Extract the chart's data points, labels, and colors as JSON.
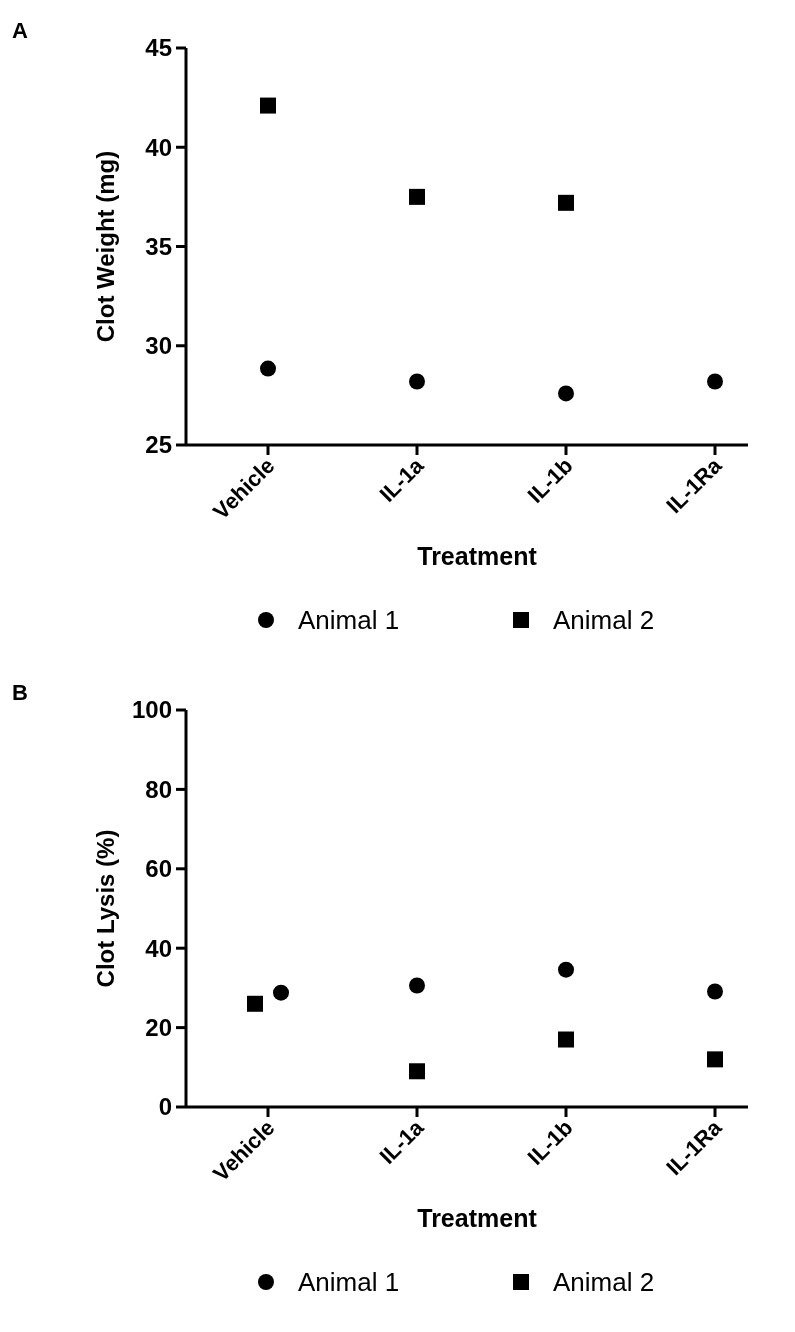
{
  "chart_data": [
    {
      "type": "scatter",
      "title": "A",
      "xlabel": "Treatment",
      "ylabel": "Clot Weight (mg)",
      "categories": [
        "Vehicle",
        "IL-1a",
        "IL-1b",
        "IL-1Ra"
      ],
      "ylim": [
        25,
        45
      ],
      "yticks": [
        25,
        30,
        35,
        40,
        45
      ],
      "legend": "bottom",
      "grid": false,
      "series": [
        {
          "name": "Animal 1",
          "color": "#000000",
          "marker": "circle",
          "values": [
            28.85,
            28.2,
            27.6,
            28.2
          ]
        },
        {
          "name": "Animal 2",
          "color": "#000000",
          "marker": "square",
          "values": [
            42.1,
            37.5,
            37.2,
            null
          ]
        }
      ]
    },
    {
      "type": "scatter",
      "title": "B",
      "xlabel": "Treatment",
      "ylabel": "Clot Lysis (%)",
      "categories": [
        "Vehicle",
        "IL-1a",
        "IL-1b",
        "IL-1Ra"
      ],
      "ylim": [
        0,
        100
      ],
      "yticks": [
        0,
        20,
        40,
        60,
        80,
        100
      ],
      "legend": "bottom",
      "grid": false,
      "series": [
        {
          "name": "Animal 1",
          "color": "#000000",
          "marker": "circle",
          "values": [
            28.8,
            30.6,
            34.6,
            29.1
          ]
        },
        {
          "name": "Animal 2",
          "color": "#000000",
          "marker": "square",
          "values": [
            26,
            9,
            17,
            12
          ]
        }
      ]
    }
  ]
}
